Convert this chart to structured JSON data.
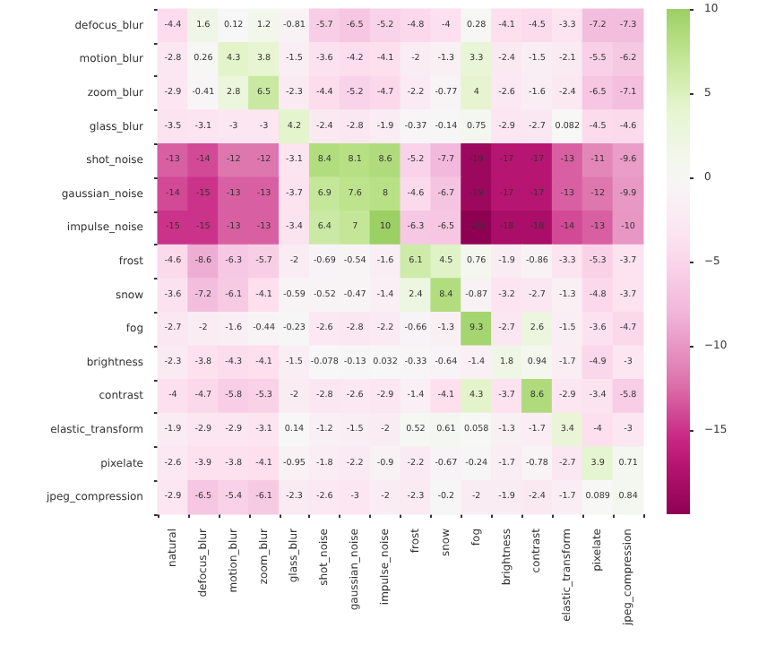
{
  "chart_data": {
    "type": "heatmap",
    "categories": [
      "natural",
      "defocus_blur",
      "motion_blur",
      "zoom_blur",
      "glass_blur",
      "shot_noise",
      "gaussian_noise",
      "impulse_noise",
      "frost",
      "snow",
      "fog",
      "brightness",
      "contrast",
      "elastic_transform",
      "pixelate",
      "jpeg_compression"
    ],
    "y_categories": [
      "defocus_blur",
      "motion_blur",
      "zoom_blur",
      "glass_blur",
      "shot_noise",
      "gaussian_noise",
      "impulse_noise",
      "frost",
      "snow",
      "fog",
      "brightness",
      "contrast",
      "elastic_transform",
      "pixelate",
      "jpeg_compression"
    ],
    "cells": [
      [
        -4.4,
        1.6,
        0.12,
        1.2,
        -0.81,
        -5.7,
        -6.5,
        -5.2,
        -4.8,
        -4,
        0.28,
        -4.1,
        -4.5,
        -3.3,
        -7.2,
        -7.3
      ],
      [
        -2.8,
        0.26,
        4.3,
        3.8,
        -1.5,
        -3.6,
        -4.2,
        -4.1,
        -2,
        -1.3,
        3.3,
        -2.4,
        -1.5,
        -2.1,
        -5.5,
        -6.2
      ],
      [
        -2.9,
        -0.41,
        2.8,
        6.5,
        -2.3,
        -4.4,
        -5.2,
        -4.7,
        -2.2,
        -0.77,
        4,
        -2.6,
        -1.6,
        -2.4,
        -6.5,
        -7.1
      ],
      [
        -3.5,
        -3.1,
        -3,
        -3,
        4.2,
        -2.4,
        -2.8,
        -1.9,
        -0.37,
        -0.14,
        0.75,
        -2.9,
        -2.7,
        0.082,
        -4.5,
        -4.6
      ],
      [
        -13,
        -14,
        -12,
        -12,
        -3.1,
        8.4,
        8.1,
        8.6,
        -5.2,
        -7.7,
        -19,
        -17,
        -17,
        -13,
        -11,
        -9.6
      ],
      [
        -14,
        -15,
        -13,
        -13,
        -3.7,
        6.9,
        7.6,
        8,
        -4.6,
        -6.7,
        -19,
        -17,
        -17,
        -13,
        -12,
        -9.9
      ],
      [
        -15,
        -15,
        -13,
        -13,
        -3.4,
        6.4,
        7,
        10,
        -6.3,
        -6.5,
        -20,
        -18,
        -18,
        -14,
        -13,
        -10
      ],
      [
        -4.6,
        -8.6,
        -6.3,
        -5.7,
        -2,
        -0.69,
        -0.54,
        -1.6,
        6.1,
        4.5,
        0.76,
        -1.9,
        -0.86,
        -3.3,
        -5.3,
        -3.7
      ],
      [
        -3.6,
        -7.2,
        -6.1,
        -4.1,
        -0.59,
        -0.52,
        -0.47,
        -1.4,
        2.4,
        8.4,
        -0.87,
        -3.2,
        -2.7,
        -1.3,
        -4.8,
        -3.7
      ],
      [
        -2.7,
        -2,
        -1.6,
        -0.44,
        -0.23,
        -2.6,
        -2.8,
        -2.2,
        -0.66,
        -1.3,
        9.3,
        -2.7,
        2.6,
        -1.5,
        -3.6,
        -4.7
      ],
      [
        -2.3,
        -3.8,
        -4.3,
        -4.1,
        -1.5,
        -0.078,
        -0.13,
        0.032,
        -0.33,
        -0.64,
        -1.4,
        1.8,
        0.94,
        -1.7,
        -4.9,
        -3
      ],
      [
        -4,
        -4.7,
        -5.8,
        -5.3,
        -2,
        -2.8,
        -2.6,
        -2.9,
        -1.4,
        -4.1,
        4.3,
        -3.7,
        8.6,
        -2.9,
        -3.4,
        -5.8
      ],
      [
        -1.9,
        -2.9,
        -2.9,
        -3.1,
        0.14,
        -1.2,
        -1.5,
        -2,
        0.52,
        0.61,
        0.058,
        -1.3,
        -1.7,
        3.4,
        -4,
        -3
      ],
      [
        -2.6,
        -3.9,
        -3.8,
        -4.1,
        -0.95,
        -1.8,
        -2.2,
        -0.9,
        -2.2,
        -0.67,
        -0.24,
        -1.7,
        -0.78,
        -2.7,
        3.9,
        0.71
      ],
      [
        -2.9,
        -6.5,
        -5.4,
        -6.1,
        -2.3,
        -2.6,
        -3,
        -2,
        -2.3,
        -0.2,
        -2,
        -1.9,
        -2.4,
        -1.7,
        0.089,
        0.84
      ]
    ],
    "clim": [
      -20,
      10
    ],
    "cticks": [
      10,
      5,
      0,
      {
        "value": -5,
        "label": "−5"
      },
      {
        "value": -10,
        "label": "−10"
      },
      {
        "value": -15,
        "label": "−15"
      }
    ],
    "data_labels": true
  }
}
